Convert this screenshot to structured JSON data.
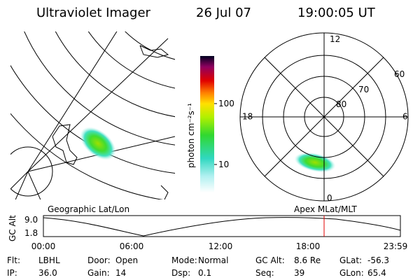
{
  "header": {
    "title": "Ultraviolet Imager",
    "date": "26 Jul 07",
    "time": "19:00:05 UT"
  },
  "colorbar": {
    "label": "photon cm⁻²s⁻¹",
    "ticks": [
      "100",
      "10"
    ]
  },
  "polar": {
    "mlt": [
      "12",
      "18",
      "6",
      "0"
    ],
    "mlat": [
      "60",
      "70",
      "80"
    ]
  },
  "altitude": {
    "left_label": "Geographic Lat/Lon",
    "right_label": "Apex MLat/MLT",
    "axis_label": "GC Alt",
    "yticks": [
      "9.0",
      "1.8"
    ],
    "xticks": [
      "00:00",
      "06:00",
      "12:00",
      "18:00",
      "23:59"
    ]
  },
  "status": [
    [
      {
        "label": "Flt:",
        "value": "LBHL"
      },
      {
        "label": "Door:",
        "value": "Open"
      },
      {
        "label": "Mode:",
        "value": "Normal"
      },
      {
        "label": "GC Alt:",
        "value": "8.6 Re"
      },
      {
        "label": "GLat:",
        "value": "-56.3"
      }
    ],
    [
      {
        "label": "IP:",
        "value": "36.0"
      },
      {
        "label": "Gain:",
        "value": "14"
      },
      {
        "label": "Dsp:",
        "value": "0.1"
      },
      {
        "label": "Seq:",
        "value": "39"
      },
      {
        "label": "GLon:",
        "value": "65.4"
      }
    ]
  ]
}
